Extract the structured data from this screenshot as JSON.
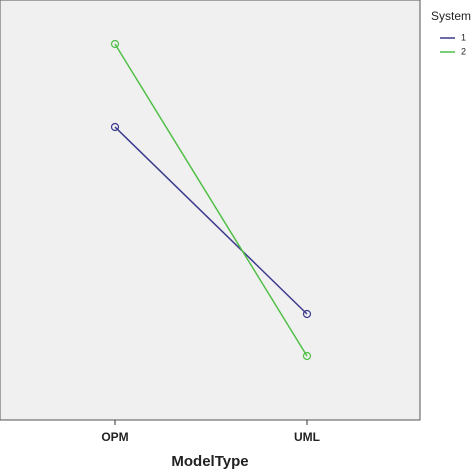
{
  "chart_data": {
    "type": "line",
    "x_label": "ModelType",
    "legend_title": "System",
    "categories": [
      "OPM",
      "UML"
    ],
    "series": [
      {
        "name": "1",
        "color": "#3b3a8c",
        "values": [
          293,
          106
        ]
      },
      {
        "name": "2",
        "color": "#4fbf45",
        "values": [
          376,
          64
        ]
      }
    ],
    "ylim": [
      0,
      420
    ],
    "legend": "right"
  }
}
